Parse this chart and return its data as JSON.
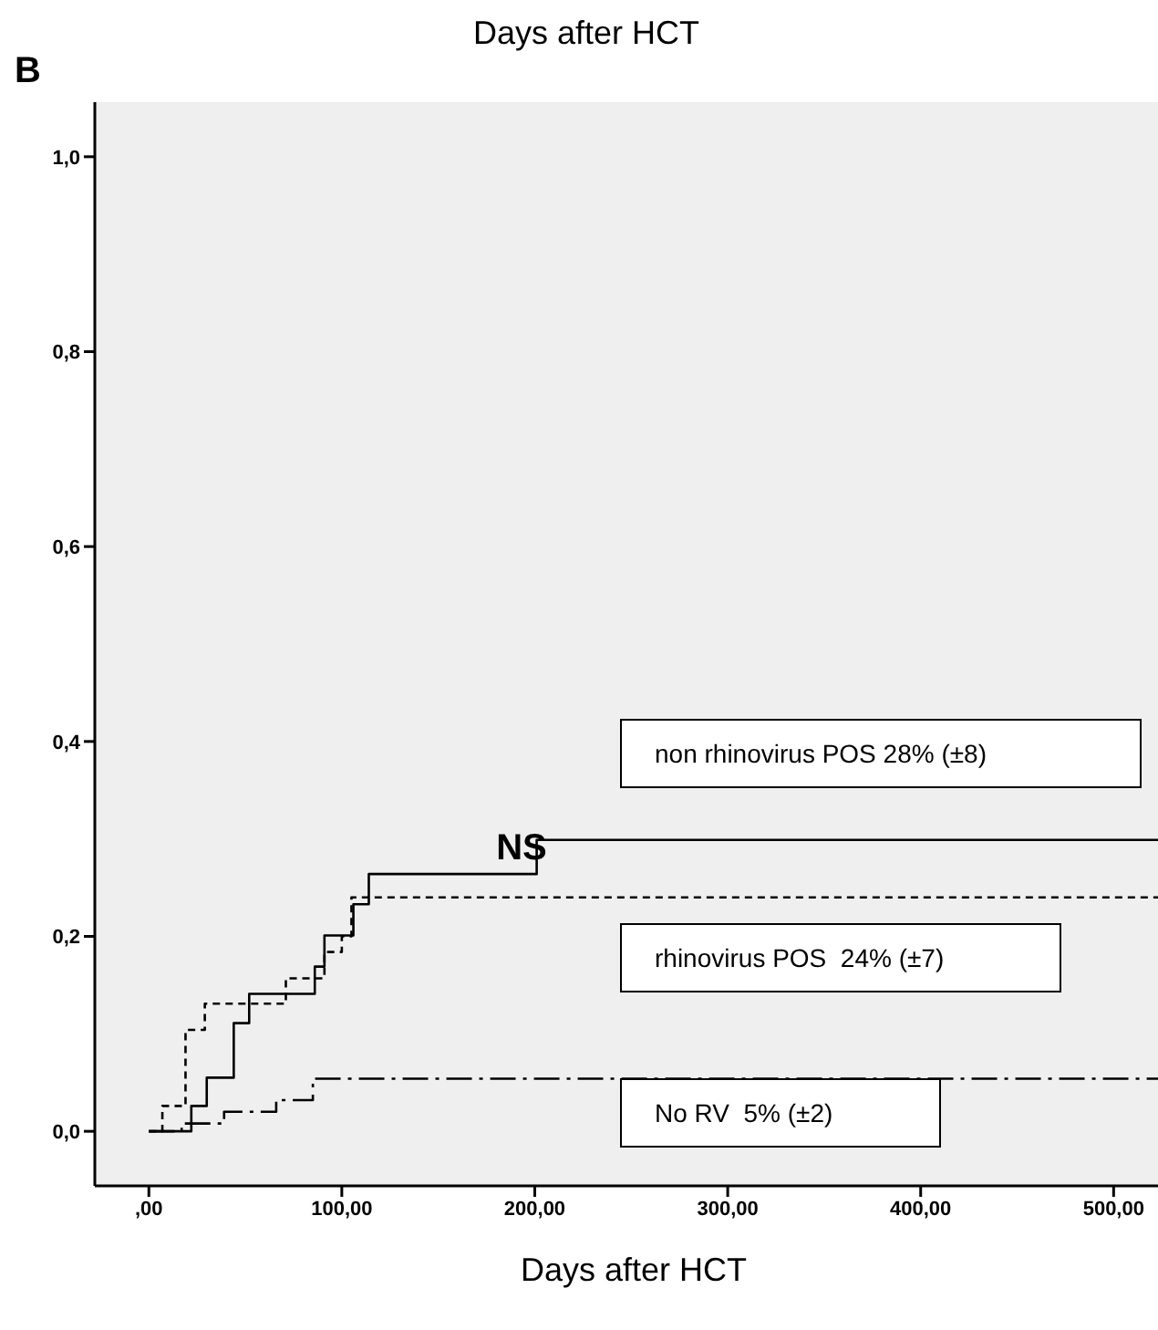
{
  "chart_data": {
    "type": "step",
    "title": "B",
    "xlabel": "Days after HCT",
    "annotations": [
      "Days after HCT",
      "NS",
      "non rhinovirus POS 28% (±8)",
      "rhinovirus POS  24% (±7)",
      "No RV  5% (±2)"
    ],
    "xlim": [
      -28,
      523
    ],
    "ylim": [
      -0.056,
      1.056
    ],
    "xticks": [
      {
        "value": 0,
        "label": ",00"
      },
      {
        "value": 100,
        "label": "100,00"
      },
      {
        "value": 200,
        "label": "200,00"
      },
      {
        "value": 300,
        "label": "300,00"
      },
      {
        "value": 400,
        "label": "400,00"
      },
      {
        "value": 500,
        "label": "500,00"
      }
    ],
    "yticks": [
      {
        "value": 0,
        "label": "0,0"
      },
      {
        "value": 0.2,
        "label": "0,2"
      },
      {
        "value": 0.4,
        "label": "0,4"
      },
      {
        "value": 0.6,
        "label": "0,6"
      },
      {
        "value": 0.8,
        "label": "0,8"
      },
      {
        "value": 1,
        "label": "1,0"
      }
    ],
    "grid": false,
    "legend": false,
    "marker": "none",
    "series": [
      {
        "color": "#000000",
        "line_style": "solid",
        "x": [
          0,
          22,
          30,
          44,
          52,
          86,
          91,
          106,
          114,
          201,
          523
        ],
        "values": [
          0,
          0.026,
          0.055,
          0.111,
          0.141,
          0.169,
          0.201,
          0.233,
          0.264,
          0.299,
          0.299
        ]
      },
      {
        "color": "#000000",
        "line_style": "dashed",
        "x": [
          0,
          7,
          19,
          29,
          71,
          91,
          100,
          105,
          523
        ],
        "values": [
          0,
          0.026,
          0.104,
          0.131,
          0.157,
          0.184,
          0.2,
          0.24,
          0.24
        ]
      },
      {
        "color": "#000000",
        "line_style": "dashdot",
        "x": [
          0,
          17,
          39,
          66,
          85,
          523
        ],
        "values": [
          0,
          0.008,
          0.02,
          0.032,
          0.054,
          0.054
        ]
      }
    ]
  }
}
